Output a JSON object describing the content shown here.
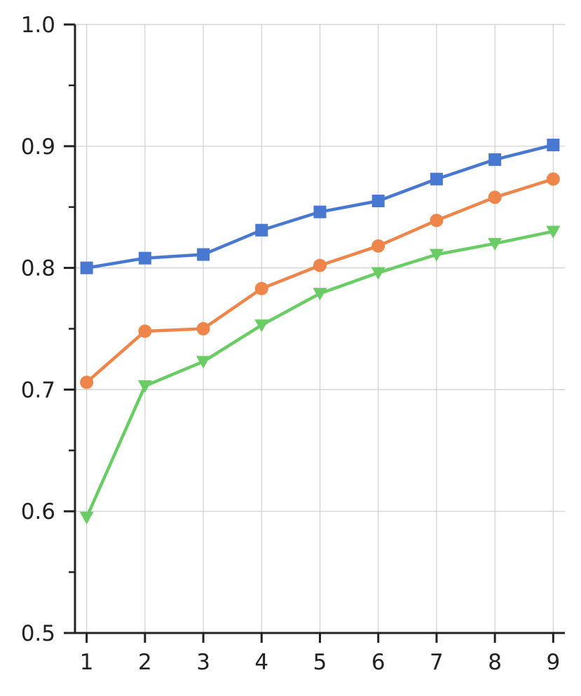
{
  "chart_data": {
    "type": "line",
    "title": "",
    "xlabel": "",
    "ylabel": "",
    "x": [
      1,
      2,
      3,
      4,
      5,
      6,
      7,
      8,
      9
    ],
    "xlim": [
      0.8,
      9.2
    ],
    "ylim": [
      0.5,
      1.0
    ],
    "xticks": [
      1,
      2,
      3,
      4,
      5,
      6,
      7,
      8,
      9
    ],
    "xtick_labels": [
      "1",
      "2",
      "3",
      "4",
      "5",
      "6",
      "7",
      "8",
      "9"
    ],
    "yticks_major": [
      0.5,
      0.6,
      0.7,
      0.8,
      0.9,
      1.0
    ],
    "ytick_labels": [
      "0.5",
      "0.6",
      "0.7",
      "0.8",
      "0.9",
      "1.0"
    ],
    "yticks_minor": [
      0.55,
      0.65,
      0.75,
      0.85,
      0.95
    ],
    "grid": true,
    "legend": null,
    "series": [
      {
        "marker": "square",
        "color": "#4878d0",
        "values": [
          0.8,
          0.808,
          0.811,
          0.831,
          0.846,
          0.855,
          0.873,
          0.889,
          0.901
        ]
      },
      {
        "marker": "circle",
        "color": "#ee854a",
        "values": [
          0.706,
          0.748,
          0.75,
          0.783,
          0.802,
          0.818,
          0.839,
          0.858,
          0.873
        ]
      },
      {
        "marker": "triangle-down",
        "color": "#6acc64",
        "values": [
          0.595,
          0.703,
          0.723,
          0.753,
          0.779,
          0.796,
          0.811,
          0.82,
          0.83
        ]
      }
    ]
  }
}
